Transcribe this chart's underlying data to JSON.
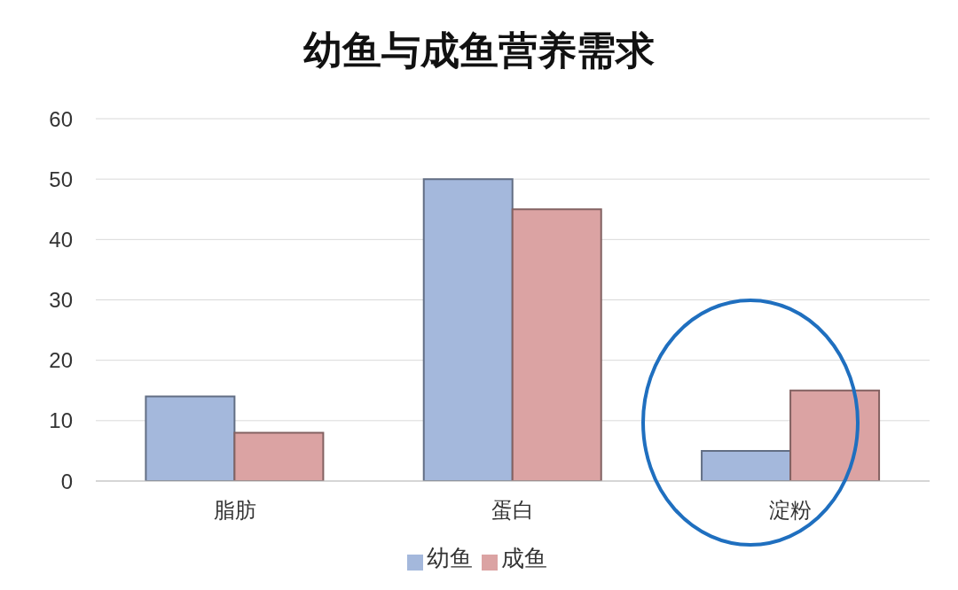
{
  "chart_data": {
    "type": "bar",
    "title": "幼鱼与成鱼营养需求",
    "categories": [
      "脂肪",
      "蛋白",
      "淀粉"
    ],
    "series": [
      {
        "name": "幼鱼",
        "color": "#a4b8dc",
        "values": [
          14,
          50,
          5
        ]
      },
      {
        "name": "成鱼",
        "color": "#dba3a3",
        "values": [
          8,
          45,
          15
        ]
      }
    ],
    "ylim": [
      0,
      60
    ],
    "yticks": [
      0,
      10,
      20,
      30,
      40,
      50,
      60
    ],
    "grid": "y",
    "legend": "bottom"
  }
}
